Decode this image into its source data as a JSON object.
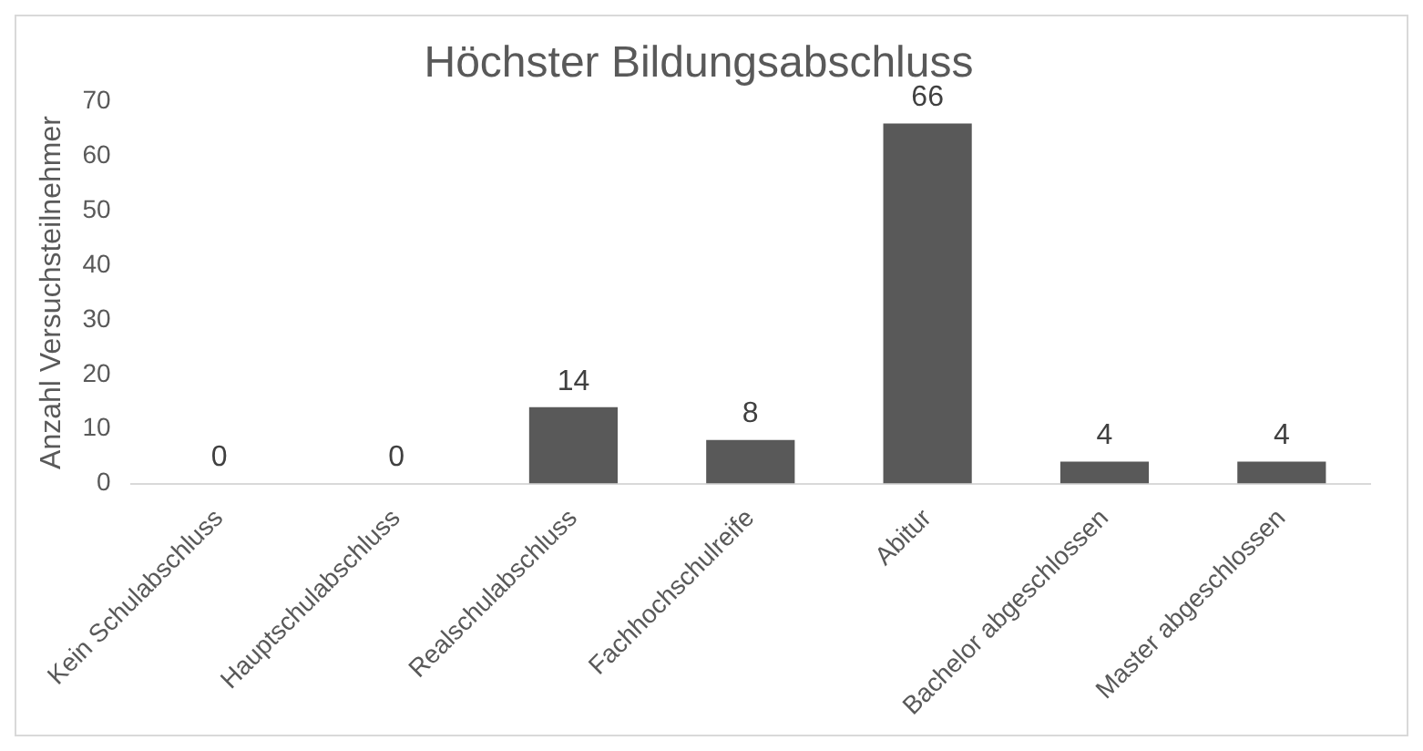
{
  "chart_data": {
    "type": "bar",
    "title": "Höchster Bildungsabschluss",
    "ylabel": "Anzahl Versuchsteilnehmer",
    "categories": [
      "Kein Schulabschluss",
      "Hauptschulabschluss",
      "Realschulabschluss",
      "Fachhochschulreife",
      "Abitur",
      "Bachelor abgeschlossen",
      "Master abgeschlossen"
    ],
    "values": [
      0,
      0,
      14,
      8,
      66,
      4,
      4
    ],
    "color": "#595959",
    "ylim": [
      0,
      70
    ],
    "yticks": [
      0,
      10,
      20,
      30,
      40,
      50,
      60,
      70
    ],
    "grid": false,
    "legend": false,
    "data_labels": true
  }
}
